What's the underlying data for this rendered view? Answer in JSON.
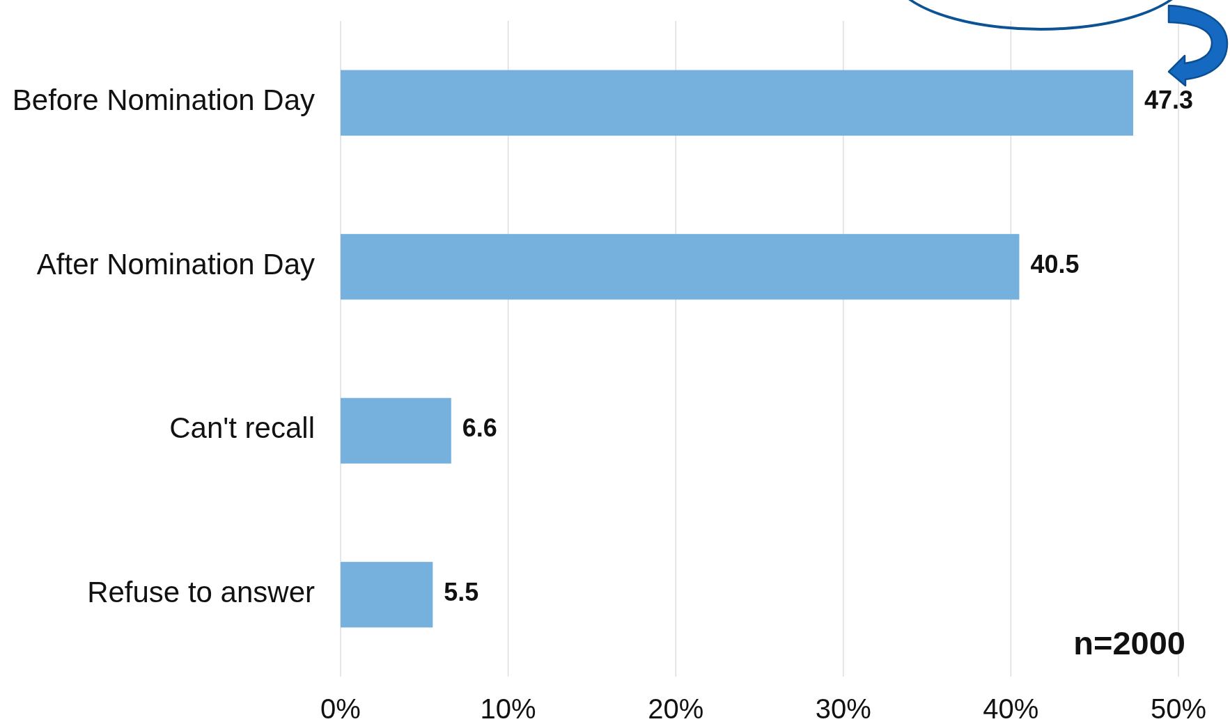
{
  "chart_data": {
    "type": "bar",
    "orientation": "horizontal",
    "categories": [
      "Before Nomination Day",
      "After Nomination Day",
      "Can't recall",
      "Refuse to answer"
    ],
    "values": [
      47.3,
      40.5,
      6.6,
      5.5
    ],
    "color": "#75b1dc",
    "xlim": [
      0,
      50
    ],
    "xticks": [
      {
        "value": 0,
        "label": "0%"
      },
      {
        "value": 10,
        "label": "10%"
      },
      {
        "value": 20,
        "label": "20%"
      },
      {
        "value": 30,
        "label": "30%"
      },
      {
        "value": 40,
        "label": "40%"
      },
      {
        "value": 50,
        "label": "50%"
      }
    ],
    "grid": "x",
    "data_labels": true,
    "annotations": [
      "n=2000"
    ]
  }
}
